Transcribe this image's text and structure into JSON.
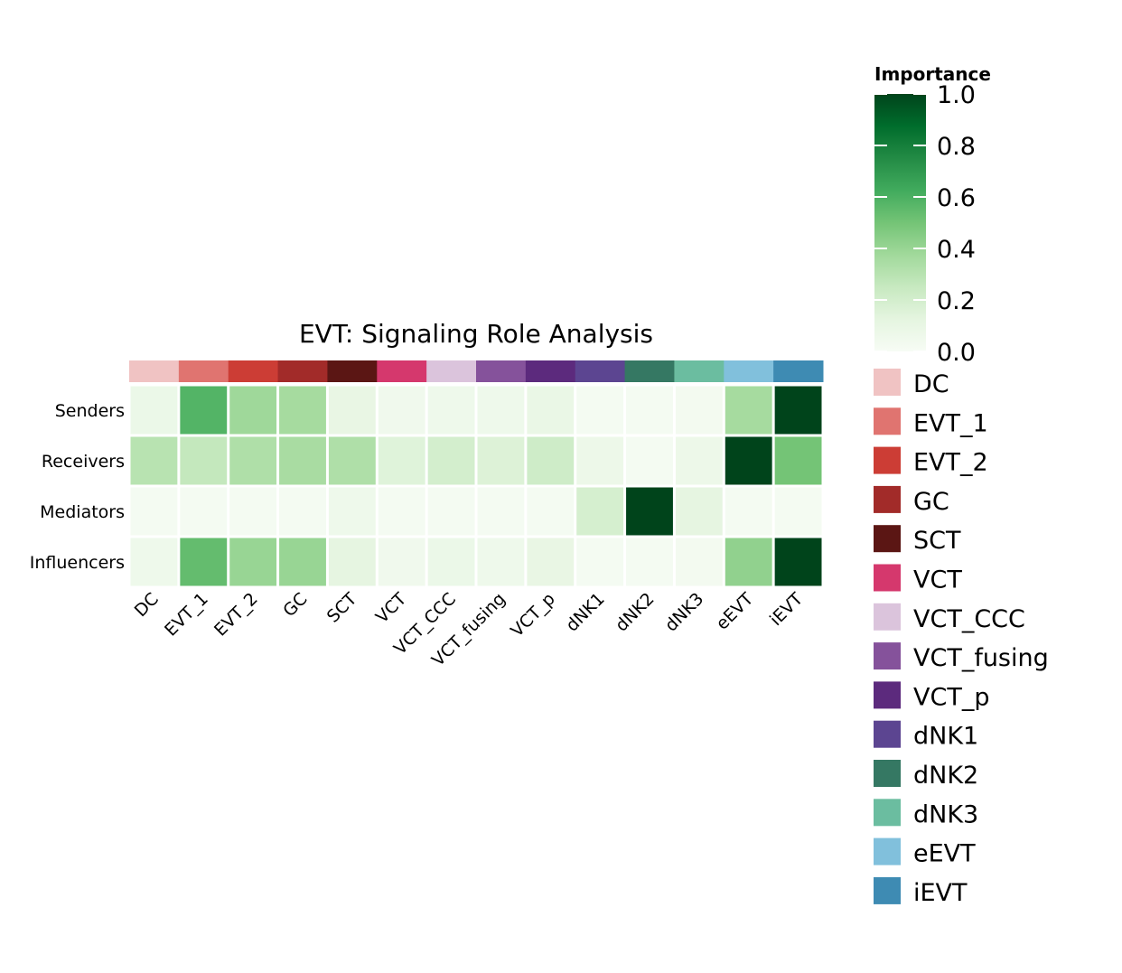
{
  "chart_data": {
    "type": "heatmap",
    "title": "EVT: Signaling Role Analysis",
    "xlabel": "",
    "ylabel": "",
    "rows": [
      "Senders",
      "Receivers",
      "Mediators",
      "Influencers"
    ],
    "columns": [
      "DC",
      "EVT_1",
      "EVT_2",
      "GC",
      "SCT",
      "VCT",
      "VCT_CCC",
      "VCT_fusing",
      "VCT_p",
      "dNK1",
      "dNK2",
      "dNK3",
      "eEVT",
      "iEVT"
    ],
    "values": [
      [
        0.08,
        0.58,
        0.38,
        0.36,
        0.1,
        0.05,
        0.06,
        0.06,
        0.09,
        0.02,
        0.02,
        0.03,
        0.36,
        1.0
      ],
      [
        0.3,
        0.26,
        0.33,
        0.35,
        0.33,
        0.15,
        0.2,
        0.16,
        0.22,
        0.07,
        0.02,
        0.07,
        1.0,
        0.5
      ],
      [
        0.02,
        0.02,
        0.02,
        0.02,
        0.06,
        0.02,
        0.02,
        0.02,
        0.02,
        0.19,
        1.0,
        0.12,
        0.02,
        0.02
      ],
      [
        0.06,
        0.54,
        0.4,
        0.4,
        0.12,
        0.05,
        0.08,
        0.06,
        0.1,
        0.02,
        0.02,
        0.03,
        0.42,
        1.0
      ]
    ],
    "colormap": "Greens",
    "vmin": 0.0,
    "vmax": 1.0,
    "colorbar": {
      "title": "Importance",
      "ticks": [
        0.0,
        0.2,
        0.4,
        0.6,
        0.8,
        1.0
      ],
      "tick_labels": [
        "0.0",
        "0.2",
        "0.4",
        "0.6",
        "0.8",
        "1.0"
      ]
    },
    "column_colors": {
      "DC": "#f0c3c3",
      "EVT_1": "#e07470",
      "EVT_2": "#cc3d35",
      "GC": "#a22b29",
      "SCT": "#5b1614",
      "VCT": "#d5386d",
      "VCT_CCC": "#dbc4dc",
      "VCT_fusing": "#85529b",
      "VCT_p": "#5c2a7d",
      "dNK1": "#5c4591",
      "dNK2": "#357863",
      "dNK3": "#6bbda0",
      "eEVT": "#81c0dc",
      "iEVT": "#3e8bb3"
    },
    "legend": {
      "placement": "right",
      "entries": [
        "DC",
        "EVT_1",
        "EVT_2",
        "GC",
        "SCT",
        "VCT",
        "VCT_CCC",
        "VCT_fusing",
        "VCT_p",
        "dNK1",
        "dNK2",
        "dNK3",
        "eEVT",
        "iEVT"
      ]
    }
  }
}
